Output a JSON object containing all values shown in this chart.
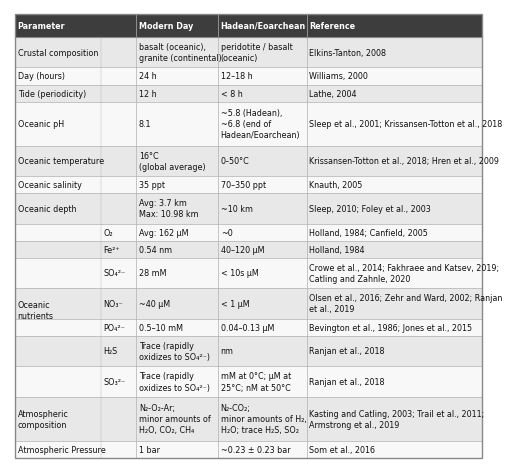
{
  "title_bg": "#3d3d3d",
  "header_text_color": "#ffffff",
  "row_bg_light": "#e8e8e8",
  "row_bg_white": "#f8f8f8",
  "border_color": "#b0b0b0",
  "text_color": "#111111",
  "fig_bg": "#ffffff",
  "headers": [
    "Parameter",
    "Modern Day",
    "Hadean/Eoarchean",
    "Reference"
  ],
  "rows": [
    {
      "param": "Crustal composition",
      "sub": "",
      "modern": "basalt (oceanic),\ngranite (continental)",
      "hadean": "peridotite / basalt\n(oceanic)",
      "ref": "Elkins-Tanton, 2008",
      "lines": 2
    },
    {
      "param": "Day (hours)",
      "sub": "",
      "modern": "24 h",
      "hadean": "12–18 h",
      "ref": "Williams, 2000",
      "lines": 1
    },
    {
      "param": "Tide (periodicity)",
      "sub": "",
      "modern": "12 h",
      "hadean": "< 8 h",
      "ref": "Lathe, 2004",
      "lines": 1
    },
    {
      "param": "Oceanic pH",
      "sub": "",
      "modern": "8.1",
      "hadean": "~5.8 (Hadean),\n~6.8 (end of\nHadean/Eoarchean)",
      "ref": "Sleep et al., 2001; Krissansen-Totton et al., 2018",
      "lines": 3
    },
    {
      "param": "Oceanic temperature",
      "sub": "",
      "modern": "16°C\n(global average)",
      "hadean": "0–50°C",
      "ref": "Krissansen-Totton et al., 2018; Hren et al., 2009",
      "lines": 2
    },
    {
      "param": "Oceanic salinity",
      "sub": "",
      "modern": "35 ppt",
      "hadean": "70–350 ppt",
      "ref": "Knauth, 2005",
      "lines": 1
    },
    {
      "param": "Oceanic depth",
      "sub": "",
      "modern": "Avg: 3.7 km\nMax: 10.98 km",
      "hadean": "~10 km",
      "ref": "Sleep, 2010; Foley et al., 2003",
      "lines": 2
    },
    {
      "param": "Oceanic\nnutrients",
      "sub": "O₂",
      "modern": "Avg: 162 μM",
      "hadean": "~0",
      "ref": "Holland, 1984; Canfield, 2005",
      "lines": 1
    },
    {
      "param": "",
      "sub": "Fe²⁺",
      "modern": "0.54 nm",
      "hadean": "40–120 μM",
      "ref": "Holland, 1984",
      "lines": 1
    },
    {
      "param": "",
      "sub": "SO₄²⁻",
      "modern": "28 mM",
      "hadean": "< 10s μM",
      "ref": "Crowe et al., 2014; Fakhraee and Katsev, 2019;\nCatling and Zahnle, 2020",
      "lines": 2
    },
    {
      "param": "",
      "sub": "NO₃⁻",
      "modern": "~40 μM",
      "hadean": "< 1 μM",
      "ref": "Olsen et al., 2016; Zehr and Ward, 2002; Ranjan\net al., 2019",
      "lines": 2
    },
    {
      "param": "",
      "sub": "PO₄²⁻",
      "modern": "0.5–10 mM",
      "hadean": "0.04–0.13 μM",
      "ref": "Bevington et al., 1986; Jones et al., 2015",
      "lines": 1
    },
    {
      "param": "",
      "sub": "H₂S",
      "modern": "Trace (rapidly\noxidizes to SO₄²⁻)",
      "hadean": "nm",
      "ref": "Ranjan et al., 2018",
      "lines": 2
    },
    {
      "param": "",
      "sub": "SO₃²⁻",
      "modern": "Trace (rapidly\noxidizes to SO₄²⁻)",
      "hadean": "mM at 0°C; μM at\n25°C; nM at 50°C",
      "ref": "Ranjan et al., 2018",
      "lines": 2
    },
    {
      "param": "Atmospheric\ncomposition",
      "sub": "",
      "modern": "N₂-O₂-Ar;\nminor amounts of\nH₂O, CO₂, CH₄",
      "hadean": "N₂-CO₂;\nminor amounts of H₂,\nH₂O; trace H₂S, SO₂",
      "ref": "Kasting and Catling, 2003; Trail et al., 2011;\nArmstrong et al., 2019",
      "lines": 3
    },
    {
      "param": "Atmospheric Pressure",
      "sub": "",
      "modern": "1 bar",
      "hadean": "~0.23 ± 0.23 bar",
      "ref": "Som et al., 2016",
      "lines": 1
    }
  ]
}
